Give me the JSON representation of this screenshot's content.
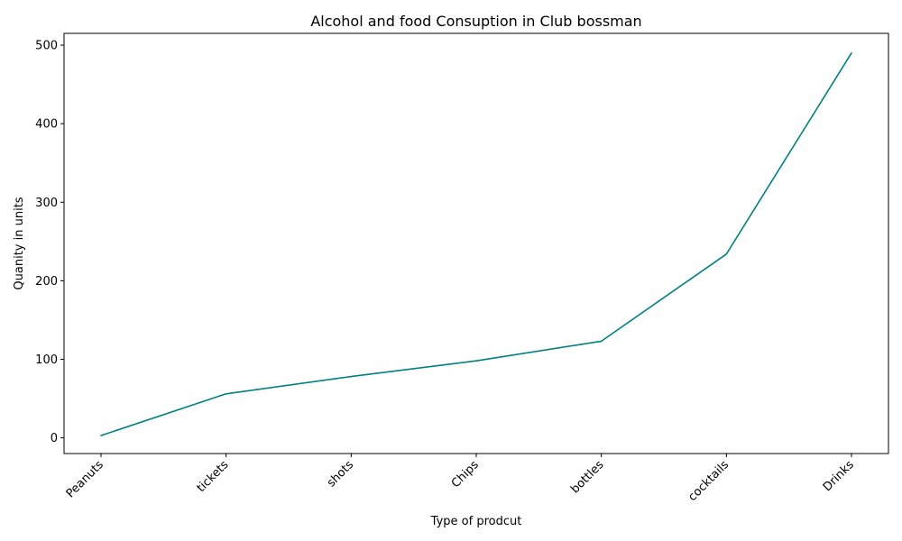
{
  "chart_data": {
    "type": "line",
    "title": "Alcohol and food Consuption in Club bossman",
    "xlabel": "Type of prodcut",
    "ylabel": "Quanity in units",
    "categories": [
      "Peanuts",
      "tickets",
      "shots",
      "Chips",
      "bottles",
      "cocktails",
      "Drinks"
    ],
    "values": [
      3,
      56,
      78,
      98,
      123,
      234,
      490
    ],
    "ylim": [
      -20,
      515
    ],
    "yticks": [
      0,
      100,
      200,
      300,
      400,
      500
    ],
    "line_color": "#008080",
    "grid": false,
    "legend": false
  }
}
